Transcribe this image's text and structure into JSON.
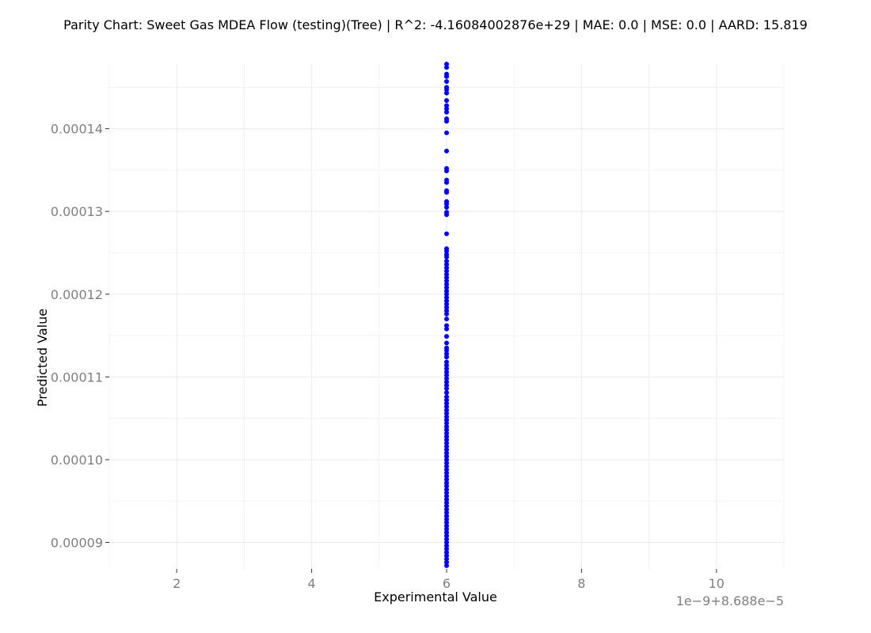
{
  "chart_data": {
    "type": "scatter",
    "title": "Parity Chart: Sweet Gas MDEA Flow (testing)(Tree) | R^2: -4.16084002876e+29 | MAE: 0.0 | MSE: 0.0 | AARD: 15.819",
    "xlabel": "Experimental Value",
    "ylabel": "Predicted Value",
    "x_offset_label": "1e−9+8.688e−5",
    "x_ticks": [
      2,
      4,
      6,
      8,
      10
    ],
    "x_tick_labels": [
      "2",
      "4",
      "6",
      "8",
      "10"
    ],
    "y_ticks": [
      9e-05,
      0.0001,
      0.00011,
      0.00012,
      0.00013,
      0.00014
    ],
    "y_tick_labels": [
      "0.00009",
      "0.00010",
      "0.00011",
      "0.00012",
      "0.00013",
      "0.00014"
    ],
    "xlim": [
      1,
      11
    ],
    "ylim": [
      8.68e-05,
      0.0001479
    ],
    "grid": true,
    "marker_color": "#0000ff",
    "grid_color": "#ebebeb",
    "series": [
      {
        "x": 6,
        "y": [
          0.0001478,
          0.0001474,
          0.0001466,
          0.0001463,
          0.0001457,
          0.000145,
          0.0001447,
          0.0001443,
          0.0001434,
          0.0001428,
          0.0001424,
          0.000142,
          0.0001412,
          0.0001409,
          0.0001395,
          0.0001373,
          0.0001352,
          0.0001349,
          0.0001338,
          0.0001335,
          0.0001325,
          0.0001323,
          0.0001312,
          0.0001309,
          0.0001305,
          0.0001299,
          0.0001296,
          0.0001273,
          0.0001255,
          0.0001252,
          0.0001248,
          0.0001245,
          0.000124,
          0.0001236,
          0.0001232,
          0.0001228,
          0.0001224,
          0.000122,
          0.0001216,
          0.0001212,
          0.0001208,
          0.0001204,
          0.00012,
          0.0001196,
          0.0001192,
          0.0001188,
          0.0001184,
          0.000118,
          0.0001176,
          0.000117,
          0.0001162,
          0.0001158,
          0.0001149,
          0.0001141,
          0.0001135,
          0.0001132,
          0.0001128,
          0.0001124,
          0.0001118,
          0.0001114,
          0.000111,
          0.0001106,
          0.0001102,
          0.0001098,
          0.0001094,
          0.000109,
          0.0001086,
          0.0001081,
          0.0001076,
          0.0001072,
          0.0001068,
          0.0001064,
          0.000106,
          0.0001056,
          0.0001052,
          0.0001048,
          0.0001044,
          0.000104,
          0.0001036,
          0.0001032,
          0.0001028,
          0.0001024,
          0.000102,
          0.0001016,
          0.0001012,
          0.0001008,
          0.0001004,
          0.0001,
          9.96e-05,
          9.92e-05,
          9.88e-05,
          9.84e-05,
          9.8e-05,
          9.76e-05,
          9.72e-05,
          9.68e-05,
          9.64e-05,
          9.6e-05,
          9.56e-05,
          9.52e-05,
          9.48e-05,
          9.44e-05,
          9.4e-05,
          9.36e-05,
          9.32e-05,
          9.28e-05,
          9.24e-05,
          9.2e-05,
          9.16e-05,
          9.12e-05,
          9.08e-05,
          9.04e-05,
          9e-05,
          8.96e-05,
          8.92e-05,
          8.88e-05,
          8.84e-05,
          8.8e-05,
          8.76e-05,
          8.72e-05
        ]
      }
    ]
  }
}
